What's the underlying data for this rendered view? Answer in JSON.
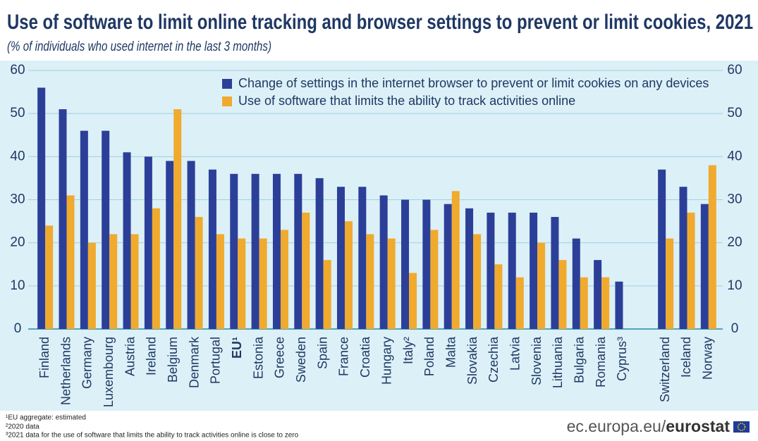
{
  "chart_data": {
    "type": "bar",
    "title": "Use of software to limit online tracking and browser settings to prevent or limit cookies, 2021",
    "subtitle": "(% of individuals who used internet in the last 3 months)",
    "categories": [
      "Finland",
      "Netherlands",
      "Germany",
      "Luxembourg",
      "Austria",
      "Ireland",
      "Belgium",
      "Denmark",
      "Portugal",
      "EU¹",
      "Estonia",
      "Greece",
      "Sweden",
      "Spain",
      "France",
      "Croatia",
      "Hungary",
      "Italy²",
      "Poland",
      "Malta",
      "Slovakia",
      "Czechia",
      "Latvia",
      "Slovenia",
      "Lithuania",
      "Bulgaria",
      "Romania",
      "Cyprus³",
      null,
      "Switzerland",
      "Iceland",
      "Norway"
    ],
    "series": [
      {
        "name": "Change of settings in the internet browser to prevent or limit cookies on any devices",
        "color": "#2b3f99",
        "values": [
          56,
          51,
          46,
          46,
          41,
          40,
          39,
          39,
          37,
          36,
          36,
          36,
          36,
          35,
          33,
          33,
          31,
          30,
          30,
          29,
          28,
          27,
          27,
          27,
          26,
          21,
          16,
          11,
          null,
          37,
          33,
          29
        ]
      },
      {
        "name": "Use of software that limits the ability to track activities online",
        "color": "#f0aa2e",
        "values": [
          24,
          31,
          20,
          22,
          22,
          28,
          51,
          26,
          22,
          21,
          21,
          23,
          27,
          16,
          25,
          22,
          21,
          13,
          23,
          32,
          22,
          15,
          12,
          20,
          16,
          12,
          12,
          null,
          null,
          21,
          27,
          38
        ]
      }
    ],
    "ylim": [
      0,
      60
    ],
    "yticks": [
      0,
      10,
      20,
      30,
      40,
      50,
      60
    ],
    "grid": true,
    "footnotes": [
      "¹EU aggregate: estimated",
      "²2020 data",
      "³2021 data for the use of software that limits the ability to track activities online  is close to zero"
    ],
    "source": {
      "site": "ec.europa.eu/",
      "brand": "eurostat"
    }
  }
}
